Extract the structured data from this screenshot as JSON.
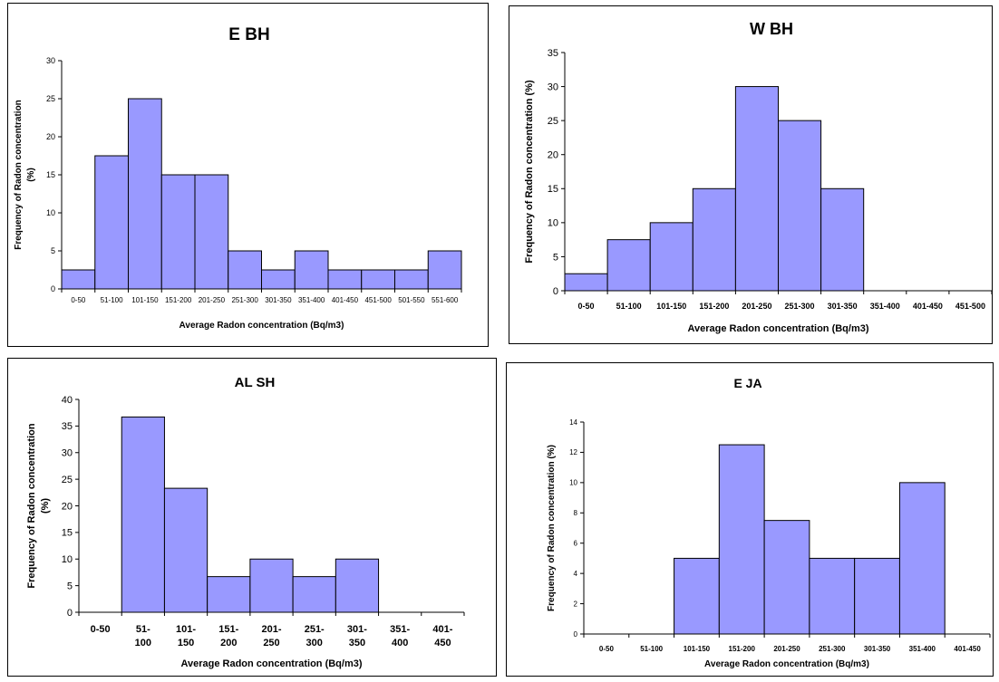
{
  "chart_data": [
    {
      "type": "bar",
      "title": "E BH",
      "xlabel": "Average Radon concentration (Bq/m3)",
      "ylabel": [
        "Frequency of Radon concentration",
        "(%)"
      ],
      "ylim": [
        0,
        30
      ],
      "yticks": [
        0,
        5,
        10,
        15,
        20,
        25,
        30
      ],
      "grid": false,
      "categories": [
        "0-50",
        "51-100",
        "101-150",
        "151-200",
        "201-250",
        "251-300",
        "301-350",
        "351-400",
        "401-450",
        "451-500",
        "501-550",
        "551-600"
      ],
      "values": [
        2.5,
        17.5,
        25,
        15,
        15,
        5,
        2.5,
        5,
        2.5,
        2.5,
        2.5,
        5
      ]
    },
    {
      "type": "bar",
      "title": "W BH",
      "xlabel": "Average Radon concentration (Bq/m3)",
      "ylabel": [
        "Frequency of Radon concentration (%)"
      ],
      "ylim": [
        0,
        35
      ],
      "yticks": [
        0,
        5,
        10,
        15,
        20,
        25,
        30,
        35
      ],
      "grid": false,
      "categories": [
        "0-50",
        "51-100",
        "101-150",
        "151-200",
        "201-250",
        "251-300",
        "301-350",
        "351-400",
        "401-450",
        "451-500"
      ],
      "values": [
        2.5,
        7.5,
        10,
        15,
        30,
        25,
        15,
        0,
        0,
        0
      ]
    },
    {
      "type": "bar",
      "title": "AL SH",
      "xlabel": "Average Radon concentration (Bq/m3)",
      "ylabel": [
        "Frequency of Radon concentration",
        "(%)"
      ],
      "ylim": [
        0,
        40
      ],
      "yticks": [
        0,
        5,
        10,
        15,
        20,
        25,
        30,
        35,
        40
      ],
      "grid": false,
      "categories": [
        "0-50",
        "51-100",
        "101-150",
        "151-200",
        "201-250",
        "251-300",
        "301-350",
        "351-400",
        "401-450"
      ],
      "values": [
        0,
        36.7,
        23.3,
        6.7,
        10,
        6.7,
        10,
        0,
        0
      ]
    },
    {
      "type": "bar",
      "title": "E JA",
      "xlabel": "Average Radon concentration (Bq/m3)",
      "ylabel": [
        "Frequency of Radon concentration (%)"
      ],
      "ylim": [
        0,
        14
      ],
      "yticks": [
        0,
        2,
        4,
        6,
        8,
        10,
        12,
        14
      ],
      "grid": false,
      "categories": [
        "0-50",
        "51-100",
        "101-150",
        "151-200",
        "201-250",
        "251-300",
        "301-350",
        "351-400",
        "401-450"
      ],
      "values": [
        0,
        0,
        5,
        12.5,
        7.5,
        5,
        5,
        10,
        0
      ]
    }
  ]
}
